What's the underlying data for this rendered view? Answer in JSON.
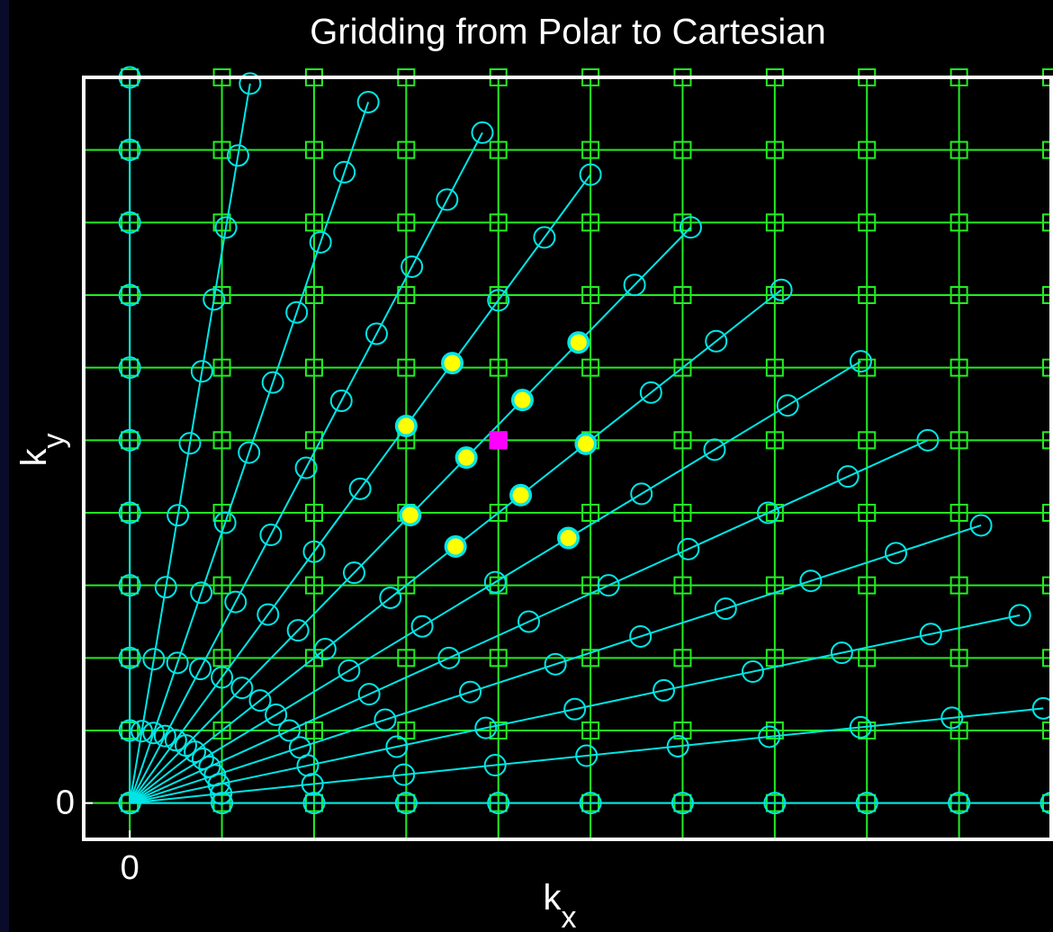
{
  "chart_data": {
    "type": "scatter",
    "title": "Gridding from Polar to Cartesian",
    "xlabel": {
      "base": "k",
      "sub": "x"
    },
    "ylabel": {
      "base": "k",
      "sub": "y"
    },
    "xlim": [
      -0.5,
      10
    ],
    "ylim": [
      -0.5,
      10
    ],
    "xticks": [
      0
    ],
    "yticks": [
      0
    ],
    "polar": {
      "color": "#00e6e6",
      "radii": [
        0,
        1,
        2,
        3,
        4,
        5,
        6,
        7,
        8,
        9,
        10
      ],
      "angles": [
        0,
        7.5,
        15,
        22.5,
        30,
        37.5,
        45,
        52.5,
        60,
        67.5,
        75,
        82.5,
        90
      ]
    },
    "cartesian": {
      "color": "#22ee22",
      "x": [
        0,
        1,
        2,
        3,
        4,
        5,
        6,
        7,
        8,
        9,
        10
      ],
      "y": [
        0,
        1,
        2,
        3,
        4,
        5,
        6,
        7,
        8,
        9,
        10
      ]
    },
    "neighbors": {
      "color": "#ffff00",
      "radius": [
        7,
        6,
        5,
        6,
        7,
        5,
        6,
        7,
        8,
        6
      ],
      "angle": [
        60,
        60,
        52.5,
        52.5,
        52.5,
        45,
        45,
        45,
        52.5,
        37.5
      ]
    },
    "target": {
      "color": "#ff00ff",
      "x": 4,
      "y": 5
    }
  }
}
